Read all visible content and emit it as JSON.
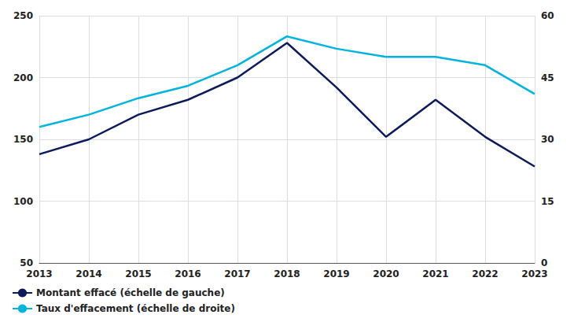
{
  "chart_data": {
    "type": "line",
    "categories": [
      2013,
      2014,
      2015,
      2016,
      2017,
      2018,
      2019,
      2020,
      2021,
      2022,
      2023
    ],
    "series": [
      {
        "name": "Montant effacé (échelle de gauche)",
        "color": "#0d1a5c",
        "values": [
          138,
          150,
          170,
          182,
          200,
          228,
          192,
          152,
          182,
          152,
          128
        ]
      },
      {
        "name": "Taux d'effacement (échelle de droite)",
        "color": "#00b4e0",
        "values": [
          33,
          36,
          40,
          43,
          48,
          55,
          52,
          50,
          50,
          48,
          41
        ],
        "axis": "y2"
      }
    ],
    "ylim": [
      50,
      250
    ],
    "yticks": [
      50,
      100,
      150,
      200,
      250
    ],
    "y2lim": [
      0,
      60
    ],
    "y2ticks": [
      0,
      15,
      30,
      45,
      60
    ],
    "grid": true,
    "legend": "bottom left"
  }
}
